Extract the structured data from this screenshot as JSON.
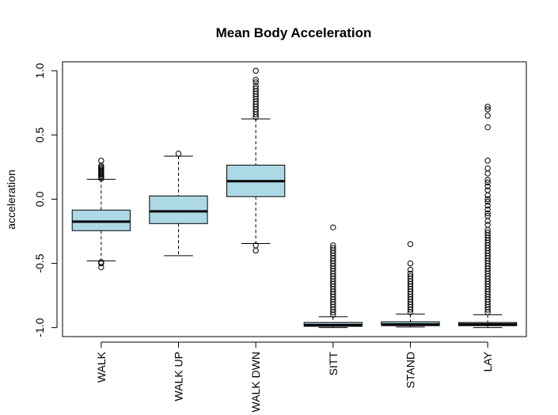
{
  "chart_data": {
    "type": "boxplot",
    "title": "Mean Body Acceleration",
    "ylabel": "acceleration",
    "xlabel": "",
    "ylim": [
      -1.07,
      1.07
    ],
    "yticks": [
      -1.0,
      -0.5,
      0.0,
      0.5,
      1.0
    ],
    "ytick_labels": [
      "-1.0",
      "-0.5",
      "0.0",
      "0.5",
      "1.0"
    ],
    "grid": false,
    "box_fill_color": "#add8e6",
    "categories": [
      "WALK",
      "WALK UP",
      "WALK DWN",
      "SITT",
      "STAND",
      "LAY"
    ],
    "boxes": [
      {
        "label": "WALK",
        "whisker_low": -0.48,
        "q1": -0.245,
        "median": -0.175,
        "q3": -0.085,
        "whisker_high": 0.155,
        "outliers": [
          -0.53,
          -0.5,
          -0.49,
          0.16,
          0.17,
          0.18,
          0.19,
          0.2,
          0.21,
          0.22,
          0.23,
          0.24,
          0.25,
          0.26,
          0.3
        ]
      },
      {
        "label": "WALK UP",
        "whisker_low": -0.44,
        "q1": -0.19,
        "median": -0.095,
        "q3": 0.025,
        "whisker_high": 0.335,
        "outliers": [
          0.355
        ]
      },
      {
        "label": "WALK DWN",
        "whisker_low": -0.345,
        "q1": 0.02,
        "median": 0.14,
        "q3": 0.265,
        "whisker_high": 0.625,
        "outliers": [
          -0.4,
          -0.36,
          0.64,
          0.66,
          0.68,
          0.7,
          0.72,
          0.74,
          0.76,
          0.78,
          0.8,
          0.82,
          0.84,
          0.86,
          0.88,
          0.91,
          0.93,
          1.0
        ]
      },
      {
        "label": "SITT",
        "whisker_low": -1.0,
        "q1": -0.99,
        "median": -0.98,
        "q3": -0.96,
        "whisker_high": -0.915,
        "outliers": [
          -0.9,
          -0.88,
          -0.86,
          -0.84,
          -0.82,
          -0.8,
          -0.78,
          -0.76,
          -0.74,
          -0.72,
          -0.7,
          -0.68,
          -0.66,
          -0.64,
          -0.62,
          -0.6,
          -0.58,
          -0.56,
          -0.54,
          -0.52,
          -0.5,
          -0.48,
          -0.46,
          -0.44,
          -0.42,
          -0.4,
          -0.38,
          -0.36,
          -0.22
        ]
      },
      {
        "label": "STAND",
        "whisker_low": -0.995,
        "q1": -0.985,
        "median": -0.975,
        "q3": -0.955,
        "whisker_high": -0.895,
        "outliers": [
          -0.88,
          -0.86,
          -0.84,
          -0.82,
          -0.8,
          -0.78,
          -0.76,
          -0.74,
          -0.72,
          -0.7,
          -0.68,
          -0.66,
          -0.64,
          -0.62,
          -0.6,
          -0.58,
          -0.55,
          -0.5,
          -0.35
        ]
      },
      {
        "label": "LAY",
        "whisker_low": -1.0,
        "q1": -0.985,
        "median": -0.975,
        "q3": -0.96,
        "whisker_high": -0.9,
        "outliers": [
          -0.88,
          -0.86,
          -0.84,
          -0.82,
          -0.8,
          -0.78,
          -0.76,
          -0.74,
          -0.72,
          -0.7,
          -0.68,
          -0.66,
          -0.64,
          -0.62,
          -0.6,
          -0.58,
          -0.56,
          -0.54,
          -0.52,
          -0.5,
          -0.48,
          -0.46,
          -0.44,
          -0.42,
          -0.4,
          -0.38,
          -0.36,
          -0.34,
          -0.32,
          -0.3,
          -0.28,
          -0.26,
          -0.24,
          -0.2,
          -0.17,
          -0.13,
          -0.11,
          -0.08,
          -0.05,
          -0.02,
          0.0,
          0.03,
          0.07,
          0.1,
          0.13,
          0.15,
          0.2,
          0.24,
          0.3,
          0.56,
          0.65,
          0.7,
          0.72
        ]
      }
    ]
  }
}
